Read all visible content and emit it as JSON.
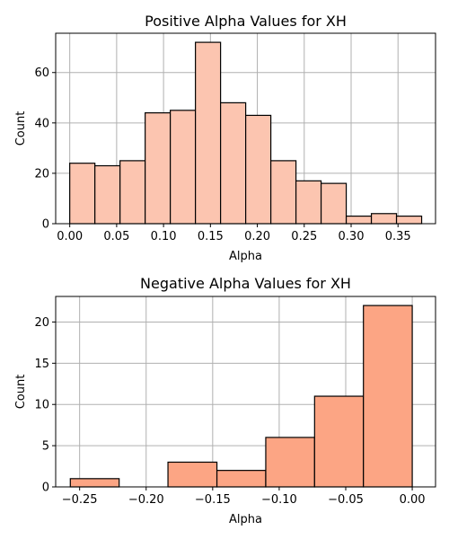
{
  "chart_data": [
    {
      "type": "bar",
      "title": "Positive Alpha Values for XH",
      "xlabel": "Alpha",
      "ylabel": "Count",
      "color": "#fcc5b0",
      "grid": true,
      "xlim": [
        -0.015,
        0.39
      ],
      "ylim": [
        0,
        75.6
      ],
      "xticks": [
        0.0,
        0.05,
        0.1,
        0.15,
        0.2,
        0.25,
        0.3,
        0.35
      ],
      "xtick_labels": [
        "0.00",
        "0.05",
        "0.10",
        "0.15",
        "0.20",
        "0.25",
        "0.30",
        "0.35"
      ],
      "yticks": [
        0,
        20,
        40,
        60
      ],
      "ytick_labels": [
        "0",
        "20",
        "40",
        "60"
      ],
      "bin_edges": [
        0.0,
        0.0268,
        0.0536,
        0.0804,
        0.1072,
        0.134,
        0.1608,
        0.1876,
        0.2144,
        0.2412,
        0.268,
        0.2948,
        0.3216,
        0.3484,
        0.3752
      ],
      "values": [
        24,
        23,
        25,
        44,
        45,
        72,
        48,
        43,
        25,
        17,
        16,
        3,
        4,
        3
      ]
    },
    {
      "type": "bar",
      "title": "Negative Alpha Values for XH",
      "xlabel": "Alpha",
      "ylabel": "Count",
      "color": "#fca584",
      "grid": true,
      "xlim": [
        -0.268,
        0.0175
      ],
      "ylim": [
        0,
        23.1
      ],
      "xticks": [
        -0.25,
        -0.2,
        -0.15,
        -0.1,
        -0.05,
        0.0
      ],
      "xtick_labels": [
        "−0.25",
        "−0.20",
        "−0.15",
        "−0.10",
        "−0.05",
        "0.00"
      ],
      "yticks": [
        0,
        5,
        10,
        15,
        20
      ],
      "ytick_labels": [
        "0",
        "5",
        "10",
        "15",
        "20"
      ],
      "bin_edges": [
        -0.257,
        -0.2203,
        -0.1836,
        -0.1468,
        -0.1101,
        -0.0734,
        -0.0367,
        0.0
      ],
      "values": [
        1,
        0,
        3,
        2,
        6,
        11,
        22
      ]
    }
  ]
}
